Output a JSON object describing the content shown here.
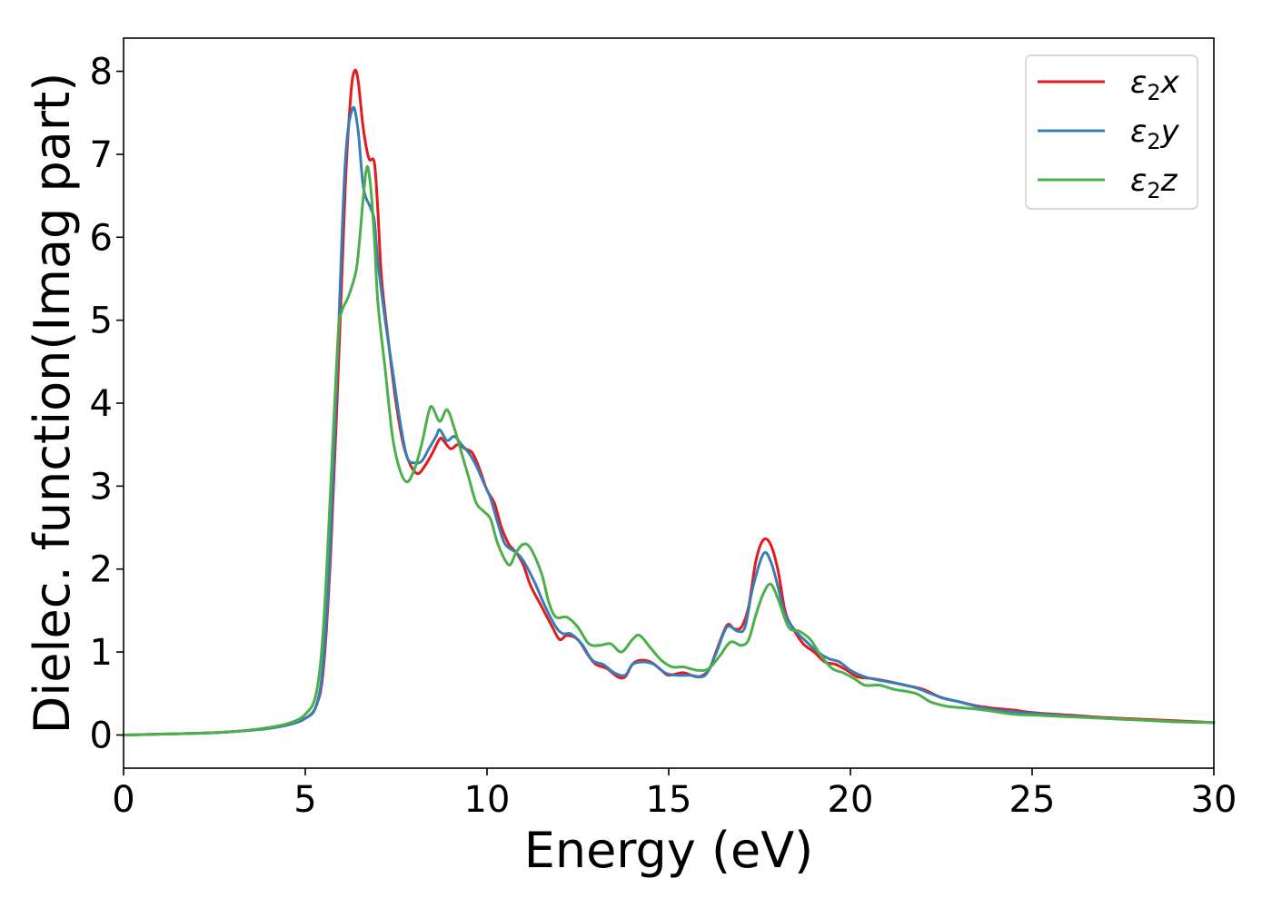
{
  "chart_data": {
    "type": "line",
    "title": "",
    "xlabel": "Energy (eV)",
    "ylabel": "Dielec. function(Imag part)",
    "xlim": [
      0,
      30
    ],
    "ylim": [
      -0.4,
      8.4
    ],
    "xticks": [
      0,
      5,
      10,
      15,
      20,
      25,
      30
    ],
    "yticks": [
      0,
      1,
      2,
      3,
      4,
      5,
      6,
      7,
      8
    ],
    "grid": false,
    "legend_position": "top-right",
    "series": [
      {
        "name": "ε₂x",
        "legend": {
          "base": "ε",
          "sub": "2",
          "suffix": "x"
        },
        "color": "#e41a1c",
        "points": [
          [
            0,
            0.0
          ],
          [
            2,
            0.02
          ],
          [
            3,
            0.04
          ],
          [
            4,
            0.08
          ],
          [
            4.6,
            0.13
          ],
          [
            5,
            0.2
          ],
          [
            5.3,
            0.35
          ],
          [
            5.5,
            0.8
          ],
          [
            5.7,
            2.2
          ],
          [
            5.9,
            4.3
          ],
          [
            6.1,
            6.6
          ],
          [
            6.25,
            7.7
          ],
          [
            6.35,
            8.0
          ],
          [
            6.45,
            7.9
          ],
          [
            6.6,
            7.3
          ],
          [
            6.75,
            6.95
          ],
          [
            6.9,
            6.9
          ],
          [
            7.0,
            6.3
          ],
          [
            7.1,
            5.5
          ],
          [
            7.3,
            4.7
          ],
          [
            7.5,
            4.0
          ],
          [
            7.7,
            3.5
          ],
          [
            7.9,
            3.25
          ],
          [
            8.1,
            3.15
          ],
          [
            8.3,
            3.25
          ],
          [
            8.5,
            3.4
          ],
          [
            8.7,
            3.57
          ],
          [
            8.8,
            3.55
          ],
          [
            9.0,
            3.45
          ],
          [
            9.2,
            3.5
          ],
          [
            9.4,
            3.45
          ],
          [
            9.6,
            3.4
          ],
          [
            9.8,
            3.2
          ],
          [
            10.0,
            2.95
          ],
          [
            10.2,
            2.8
          ],
          [
            10.4,
            2.5
          ],
          [
            10.6,
            2.3
          ],
          [
            10.8,
            2.2
          ],
          [
            11.0,
            2.05
          ],
          [
            11.2,
            1.8
          ],
          [
            11.5,
            1.55
          ],
          [
            11.8,
            1.3
          ],
          [
            12.0,
            1.15
          ],
          [
            12.2,
            1.2
          ],
          [
            12.5,
            1.15
          ],
          [
            12.8,
            0.95
          ],
          [
            13.0,
            0.85
          ],
          [
            13.3,
            0.8
          ],
          [
            13.6,
            0.7
          ],
          [
            13.8,
            0.7
          ],
          [
            14.0,
            0.85
          ],
          [
            14.2,
            0.9
          ],
          [
            14.5,
            0.88
          ],
          [
            14.8,
            0.78
          ],
          [
            15.0,
            0.72
          ],
          [
            15.4,
            0.75
          ],
          [
            15.8,
            0.7
          ],
          [
            16.1,
            0.78
          ],
          [
            16.3,
            1.0
          ],
          [
            16.6,
            1.32
          ],
          [
            16.8,
            1.28
          ],
          [
            17.0,
            1.3
          ],
          [
            17.2,
            1.55
          ],
          [
            17.4,
            2.1
          ],
          [
            17.6,
            2.35
          ],
          [
            17.8,
            2.3
          ],
          [
            18.0,
            2.0
          ],
          [
            18.2,
            1.5
          ],
          [
            18.4,
            1.3
          ],
          [
            18.7,
            1.1
          ],
          [
            19.0,
            1.0
          ],
          [
            19.3,
            0.88
          ],
          [
            19.6,
            0.85
          ],
          [
            19.9,
            0.78
          ],
          [
            20.2,
            0.7
          ],
          [
            20.6,
            0.68
          ],
          [
            21.0,
            0.65
          ],
          [
            21.5,
            0.6
          ],
          [
            22.0,
            0.55
          ],
          [
            22.5,
            0.45
          ],
          [
            23.0,
            0.4
          ],
          [
            23.5,
            0.35
          ],
          [
            24.0,
            0.32
          ],
          [
            24.5,
            0.3
          ],
          [
            25.0,
            0.27
          ],
          [
            26.0,
            0.24
          ],
          [
            27.0,
            0.21
          ],
          [
            28.0,
            0.19
          ],
          [
            29.0,
            0.17
          ],
          [
            30.0,
            0.15
          ]
        ]
      },
      {
        "name": "ε₂y",
        "legend": {
          "base": "ε",
          "sub": "2",
          "suffix": "y"
        },
        "color": "#377eb8",
        "points": [
          [
            0,
            0.0
          ],
          [
            2,
            0.02
          ],
          [
            3,
            0.04
          ],
          [
            4,
            0.08
          ],
          [
            4.6,
            0.13
          ],
          [
            5,
            0.2
          ],
          [
            5.3,
            0.35
          ],
          [
            5.5,
            0.9
          ],
          [
            5.7,
            2.4
          ],
          [
            5.9,
            4.7
          ],
          [
            6.1,
            6.9
          ],
          [
            6.3,
            7.55
          ],
          [
            6.45,
            7.3
          ],
          [
            6.6,
            6.6
          ],
          [
            6.8,
            6.35
          ],
          [
            6.9,
            6.2
          ],
          [
            7.0,
            5.7
          ],
          [
            7.2,
            5.0
          ],
          [
            7.4,
            4.4
          ],
          [
            7.6,
            3.8
          ],
          [
            7.8,
            3.35
          ],
          [
            8.0,
            3.28
          ],
          [
            8.2,
            3.3
          ],
          [
            8.4,
            3.45
          ],
          [
            8.6,
            3.6
          ],
          [
            8.7,
            3.68
          ],
          [
            8.9,
            3.55
          ],
          [
            9.1,
            3.6
          ],
          [
            9.3,
            3.5
          ],
          [
            9.5,
            3.4
          ],
          [
            9.7,
            3.25
          ],
          [
            9.9,
            3.05
          ],
          [
            10.1,
            2.85
          ],
          [
            10.3,
            2.55
          ],
          [
            10.5,
            2.3
          ],
          [
            10.8,
            2.2
          ],
          [
            11.0,
            2.1
          ],
          [
            11.3,
            1.85
          ],
          [
            11.6,
            1.55
          ],
          [
            11.9,
            1.3
          ],
          [
            12.1,
            1.22
          ],
          [
            12.3,
            1.22
          ],
          [
            12.6,
            1.1
          ],
          [
            12.9,
            0.9
          ],
          [
            13.2,
            0.85
          ],
          [
            13.5,
            0.75
          ],
          [
            13.8,
            0.72
          ],
          [
            14.0,
            0.85
          ],
          [
            14.3,
            0.88
          ],
          [
            14.6,
            0.85
          ],
          [
            14.9,
            0.75
          ],
          [
            15.2,
            0.72
          ],
          [
            15.6,
            0.72
          ],
          [
            16.0,
            0.72
          ],
          [
            16.3,
            0.98
          ],
          [
            16.6,
            1.3
          ],
          [
            16.9,
            1.25
          ],
          [
            17.1,
            1.3
          ],
          [
            17.3,
            1.75
          ],
          [
            17.6,
            2.18
          ],
          [
            17.8,
            2.1
          ],
          [
            18.0,
            1.8
          ],
          [
            18.2,
            1.45
          ],
          [
            18.5,
            1.25
          ],
          [
            18.8,
            1.12
          ],
          [
            19.1,
            1.0
          ],
          [
            19.4,
            0.92
          ],
          [
            19.7,
            0.88
          ],
          [
            20.0,
            0.78
          ],
          [
            20.4,
            0.7
          ],
          [
            20.8,
            0.66
          ],
          [
            21.3,
            0.62
          ],
          [
            21.8,
            0.57
          ],
          [
            22.2,
            0.5
          ],
          [
            22.6,
            0.44
          ],
          [
            23.0,
            0.4
          ],
          [
            23.5,
            0.34
          ],
          [
            24.0,
            0.3
          ],
          [
            24.5,
            0.28
          ],
          [
            25.0,
            0.26
          ],
          [
            26.0,
            0.23
          ],
          [
            27.0,
            0.2
          ],
          [
            28.0,
            0.18
          ],
          [
            29.0,
            0.16
          ],
          [
            30.0,
            0.15
          ]
        ]
      },
      {
        "name": "ε₂z",
        "legend": {
          "base": "ε",
          "sub": "2",
          "suffix": "z"
        },
        "color": "#4daf4a",
        "points": [
          [
            0,
            0.0
          ],
          [
            2,
            0.02
          ],
          [
            3,
            0.04
          ],
          [
            4,
            0.09
          ],
          [
            4.6,
            0.15
          ],
          [
            5,
            0.25
          ],
          [
            5.3,
            0.5
          ],
          [
            5.5,
            1.3
          ],
          [
            5.7,
            3.0
          ],
          [
            5.9,
            4.8
          ],
          [
            6.0,
            5.1
          ],
          [
            6.2,
            5.3
          ],
          [
            6.4,
            5.6
          ],
          [
            6.5,
            6.0
          ],
          [
            6.6,
            6.5
          ],
          [
            6.7,
            6.85
          ],
          [
            6.8,
            6.6
          ],
          [
            6.9,
            6.0
          ],
          [
            7.0,
            5.2
          ],
          [
            7.2,
            4.4
          ],
          [
            7.4,
            3.6
          ],
          [
            7.6,
            3.2
          ],
          [
            7.8,
            3.05
          ],
          [
            8.0,
            3.2
          ],
          [
            8.2,
            3.5
          ],
          [
            8.4,
            3.9
          ],
          [
            8.5,
            3.95
          ],
          [
            8.7,
            3.78
          ],
          [
            8.9,
            3.92
          ],
          [
            9.1,
            3.7
          ],
          [
            9.3,
            3.4
          ],
          [
            9.5,
            3.1
          ],
          [
            9.7,
            2.8
          ],
          [
            9.9,
            2.7
          ],
          [
            10.1,
            2.6
          ],
          [
            10.3,
            2.3
          ],
          [
            10.6,
            2.05
          ],
          [
            10.8,
            2.2
          ],
          [
            11.0,
            2.3
          ],
          [
            11.2,
            2.25
          ],
          [
            11.5,
            1.95
          ],
          [
            11.7,
            1.6
          ],
          [
            11.9,
            1.42
          ],
          [
            12.2,
            1.42
          ],
          [
            12.5,
            1.3
          ],
          [
            12.8,
            1.1
          ],
          [
            13.1,
            1.08
          ],
          [
            13.4,
            1.1
          ],
          [
            13.7,
            1.0
          ],
          [
            14.0,
            1.15
          ],
          [
            14.2,
            1.2
          ],
          [
            14.5,
            1.05
          ],
          [
            14.8,
            0.9
          ],
          [
            15.1,
            0.82
          ],
          [
            15.4,
            0.82
          ],
          [
            15.8,
            0.78
          ],
          [
            16.1,
            0.8
          ],
          [
            16.4,
            0.95
          ],
          [
            16.7,
            1.12
          ],
          [
            17.0,
            1.08
          ],
          [
            17.2,
            1.15
          ],
          [
            17.4,
            1.45
          ],
          [
            17.6,
            1.7
          ],
          [
            17.8,
            1.82
          ],
          [
            18.0,
            1.65
          ],
          [
            18.3,
            1.3
          ],
          [
            18.6,
            1.25
          ],
          [
            18.9,
            1.15
          ],
          [
            19.2,
            0.95
          ],
          [
            19.5,
            0.8
          ],
          [
            19.8,
            0.75
          ],
          [
            20.1,
            0.68
          ],
          [
            20.4,
            0.6
          ],
          [
            20.8,
            0.6
          ],
          [
            21.2,
            0.55
          ],
          [
            21.8,
            0.5
          ],
          [
            22.2,
            0.4
          ],
          [
            22.6,
            0.35
          ],
          [
            23.0,
            0.33
          ],
          [
            23.5,
            0.31
          ],
          [
            24.0,
            0.28
          ],
          [
            24.5,
            0.25
          ],
          [
            25.0,
            0.24
          ],
          [
            26.0,
            0.22
          ],
          [
            27.0,
            0.2
          ],
          [
            28.0,
            0.18
          ],
          [
            29.0,
            0.16
          ],
          [
            30.0,
            0.15
          ]
        ]
      }
    ]
  }
}
